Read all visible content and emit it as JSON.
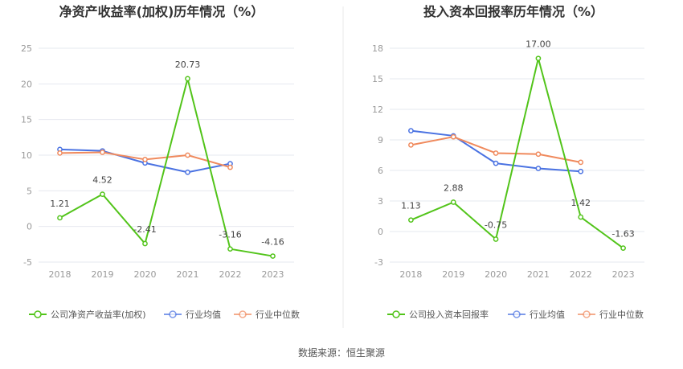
{
  "source": "数据来源：恒生聚源",
  "colors": {
    "company": "#52c41a",
    "avg": "#4a72e2",
    "median": "#f08a5d",
    "grid": "#e6e8ef",
    "divider": "#e8e8e8"
  },
  "chart_data": [
    {
      "type": "line",
      "title": "净资产收益率(加权)历年情况（%）",
      "categories": [
        "2018",
        "2019",
        "2020",
        "2021",
        "2022",
        "2023"
      ],
      "ylim": [
        -5,
        25
      ],
      "yticks": [
        -5,
        0,
        5,
        10,
        15,
        20,
        25
      ],
      "ytick_labels": [
        "-5",
        "0",
        "5",
        "10",
        "15",
        "20",
        "25"
      ],
      "series": [
        {
          "name": "公司净资产收益率(加权)",
          "key": "company",
          "values": [
            1.21,
            4.52,
            -2.41,
            20.73,
            -3.16,
            -4.16
          ],
          "labels": [
            "1.21",
            "4.52",
            "-2.41",
            "20.73",
            "-3.16",
            "-4.16"
          ]
        },
        {
          "name": "行业均值",
          "key": "avg",
          "values": [
            10.8,
            10.6,
            8.9,
            7.6,
            8.8,
            null
          ]
        },
        {
          "name": "行业中位数",
          "key": "median",
          "values": [
            10.3,
            10.4,
            9.4,
            10.0,
            8.3,
            null
          ]
        }
      ]
    },
    {
      "type": "line",
      "title": "投入资本回报率历年情况（%）",
      "categories": [
        "2018",
        "2019",
        "2020",
        "2021",
        "2022",
        "2023"
      ],
      "ylim": [
        -3,
        18
      ],
      "yticks": [
        -3,
        0,
        3,
        6,
        9,
        12,
        15,
        18
      ],
      "ytick_labels": [
        "-3",
        "0",
        "3",
        "6",
        "9",
        "12",
        "15",
        "18"
      ],
      "series": [
        {
          "name": "公司投入资本回报率",
          "key": "company",
          "values": [
            1.13,
            2.88,
            -0.75,
            17.0,
            1.42,
            -1.63
          ],
          "labels": [
            "1.13",
            "2.88",
            "-0.75",
            "17.00",
            "1.42",
            "-1.63"
          ]
        },
        {
          "name": "行业均值",
          "key": "avg",
          "values": [
            9.9,
            9.4,
            6.7,
            6.2,
            5.9,
            null
          ]
        },
        {
          "name": "行业中位数",
          "key": "median",
          "values": [
            8.5,
            9.3,
            7.7,
            7.6,
            6.8,
            null
          ]
        }
      ]
    }
  ]
}
